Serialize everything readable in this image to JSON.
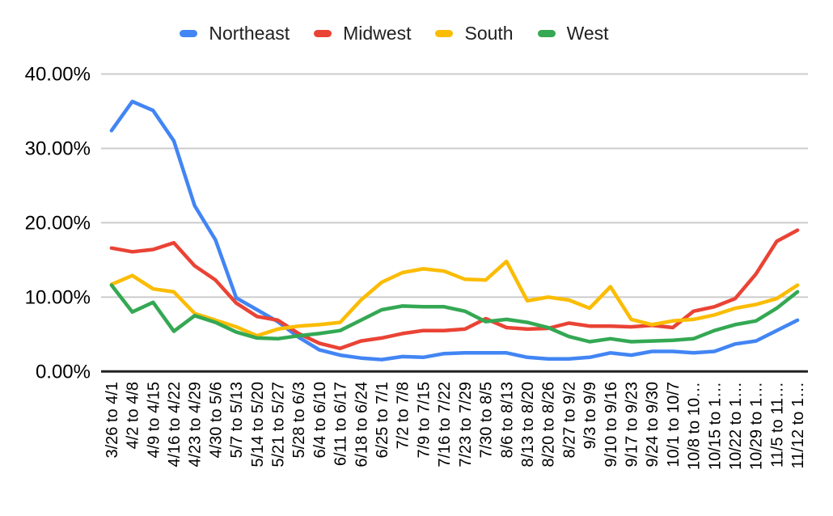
{
  "chart_data": {
    "type": "line",
    "title": "",
    "legend_position": "top",
    "grid": true,
    "gridline_color": "#cccccc",
    "axis_line_color": "#212121",
    "x_tick_rotation": 90,
    "categories": [
      "3/26 to 4/1",
      "4/2 to 4/8",
      "4/9 to 4/15",
      "4/16 to 4/22",
      "4/23 to 4/29",
      "4/30 to 5/6",
      "5/7 to 5/13",
      "5/14 to 5/20",
      "5/21 to 5/27",
      "5/28 to 6/3",
      "6/4 to 6/10",
      "6/11 to 6/17",
      "6/18 to 6/24",
      "6/25 to 7/1",
      "7/2 to 7/8",
      "7/9 to 7/15",
      "7/16 to 7/22",
      "7/23 to 7/29",
      "7/30 to 8/5",
      "8/6 to 8/13",
      "8/13 to 8/20",
      "8/20 to 8/26",
      "8/27 to 9/2",
      "9/3 to 9/9",
      "9/10 to 9/16",
      "9/17 to 9/23",
      "9/24 to 9/30",
      "10/1 to 10/7",
      "10/8 to 10…",
      "10/15 to 1…",
      "10/22 to 1…",
      "10/29 to 1…",
      "11/5 to 11…",
      "11/12 to 1…"
    ],
    "series": [
      {
        "name": "Northeast",
        "color": "#4285F4",
        "values": [
          32.4,
          36.3,
          35.1,
          31.0,
          22.3,
          17.7,
          9.9,
          8.3,
          6.7,
          4.6,
          2.9,
          2.2,
          1.8,
          1.6,
          2.0,
          1.9,
          2.4,
          2.5,
          2.5,
          2.5,
          1.9,
          1.7,
          1.7,
          1.9,
          2.5,
          2.2,
          2.7,
          2.7,
          2.5,
          2.7,
          3.7,
          4.1,
          5.5,
          6.9
        ]
      },
      {
        "name": "Midwest",
        "color": "#EA4335",
        "values": [
          16.6,
          16.1,
          16.4,
          17.3,
          14.2,
          12.3,
          9.2,
          7.4,
          6.9,
          5.1,
          3.8,
          3.1,
          4.1,
          4.5,
          5.1,
          5.5,
          5.5,
          5.7,
          7.1,
          5.9,
          5.7,
          5.8,
          6.5,
          6.1,
          6.1,
          6.0,
          6.2,
          5.9,
          8.1,
          8.7,
          9.8,
          13.1,
          17.5,
          19.0
        ]
      },
      {
        "name": "South",
        "color": "#FBBC04",
        "values": [
          11.7,
          12.9,
          11.1,
          10.7,
          7.8,
          6.9,
          6.0,
          4.8,
          5.7,
          6.1,
          6.3,
          6.6,
          9.6,
          12.0,
          13.3,
          13.8,
          13.5,
          12.4,
          12.3,
          14.8,
          9.5,
          10.0,
          9.6,
          8.5,
          11.4,
          7.0,
          6.3,
          6.8,
          7.0,
          7.6,
          8.5,
          9.0,
          9.8,
          11.6
        ]
      },
      {
        "name": "West",
        "color": "#34A853",
        "values": [
          11.6,
          8.0,
          9.3,
          5.4,
          7.5,
          6.6,
          5.3,
          4.5,
          4.4,
          4.8,
          5.1,
          5.5,
          6.9,
          8.3,
          8.8,
          8.7,
          8.7,
          8.1,
          6.7,
          7.0,
          6.6,
          5.9,
          4.7,
          4.0,
          4.4,
          4.0,
          4.1,
          4.2,
          4.4,
          5.5,
          6.3,
          6.8,
          8.5,
          10.7
        ]
      }
    ],
    "y_axis": {
      "min": 0,
      "max": 40,
      "tick_step": 10,
      "tick_labels": [
        "0.00%",
        "10.00%",
        "20.00%",
        "30.00%",
        "40.00%"
      ],
      "format": "percent"
    }
  }
}
